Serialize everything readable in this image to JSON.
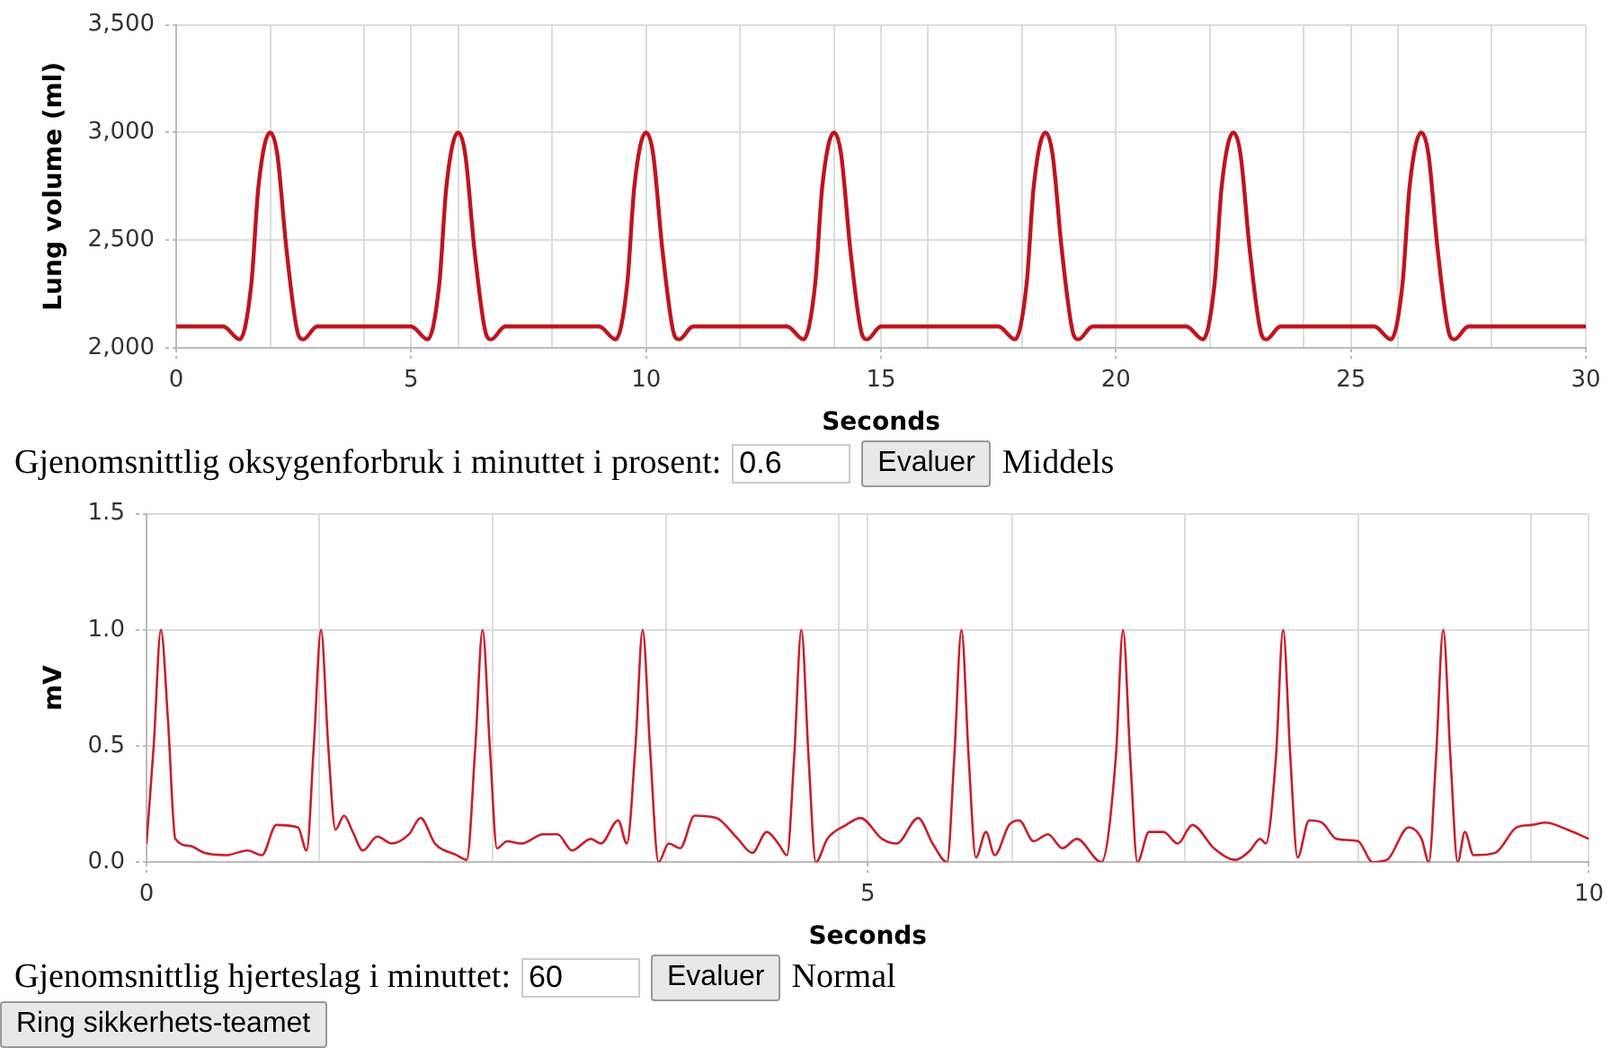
{
  "chart_data": [
    {
      "type": "line",
      "xlabel": "Seconds",
      "ylabel": "Lung volume (ml)",
      "xlim": [
        0,
        30
      ],
      "ylim": [
        2000,
        3500
      ],
      "grid": true,
      "marker": "none",
      "line_style": "solid",
      "color": "#c0141e",
      "xticks": [
        0,
        {
          "value": 2,
          "label": null
        },
        {
          "value": 4,
          "label": null
        },
        5,
        {
          "value": 6,
          "label": null
        },
        {
          "value": 8,
          "label": null
        },
        10,
        {
          "value": 12,
          "label": null
        },
        {
          "value": 14,
          "label": null
        },
        15,
        {
          "value": 16,
          "label": null
        },
        {
          "value": 18,
          "label": null
        },
        20,
        {
          "value": 22,
          "label": null
        },
        {
          "value": 24,
          "label": null
        },
        25,
        {
          "value": 26,
          "label": null
        },
        {
          "value": 28,
          "label": null
        },
        30
      ],
      "yticks": [
        {
          "value": 2000,
          "label": "2,000"
        },
        {
          "value": 2500,
          "label": "2,500"
        },
        {
          "value": 3000,
          "label": "3,000"
        },
        {
          "value": 3500,
          "label": "3,500"
        }
      ],
      "x": [
        0,
        1.0,
        1.35,
        1.6,
        1.75,
        2.0,
        2.15,
        2.35,
        2.6,
        2.7,
        3.0,
        5.0,
        5.35,
        5.6,
        5.75,
        6.0,
        6.15,
        6.35,
        6.6,
        6.7,
        7.0,
        9.0,
        9.35,
        9.6,
        9.75,
        10.0,
        10.15,
        10.35,
        10.6,
        10.7,
        11.0,
        13.0,
        13.35,
        13.6,
        13.75,
        14.0,
        14.15,
        14.35,
        14.6,
        14.7,
        15.0,
        17.5,
        17.85,
        18.1,
        18.25,
        18.5,
        18.65,
        18.85,
        19.1,
        19.2,
        19.5,
        21.5,
        21.85,
        22.1,
        22.25,
        22.5,
        22.65,
        22.85,
        23.1,
        23.2,
        23.5,
        25.5,
        25.85,
        26.1,
        26.25,
        26.5,
        26.65,
        26.85,
        27.1,
        27.2,
        27.5,
        30
      ],
      "values": [
        2100,
        2100,
        2040,
        2300,
        2750,
        3000,
        2900,
        2450,
        2060,
        2040,
        2100,
        2100,
        2040,
        2300,
        2750,
        3000,
        2900,
        2450,
        2060,
        2040,
        2100,
        2100,
        2040,
        2300,
        2750,
        3000,
        2900,
        2450,
        2060,
        2040,
        2100,
        2100,
        2040,
        2300,
        2750,
        3000,
        2900,
        2450,
        2060,
        2040,
        2100,
        2100,
        2040,
        2300,
        2750,
        3000,
        2900,
        2450,
        2060,
        2040,
        2100,
        2100,
        2040,
        2300,
        2750,
        3000,
        2900,
        2450,
        2060,
        2040,
        2100,
        2100,
        2040,
        2300,
        2750,
        3000,
        2900,
        2450,
        2060,
        2040,
        2100,
        2100
      ],
      "annotations": [
        "Gjenomsnittlig oksygenforbruk i minuttet i prosent:",
        "0.6",
        "Evaluer",
        "Middels"
      ]
    },
    {
      "type": "line",
      "xlabel": "Seconds",
      "ylabel": "mV",
      "xlim": [
        0,
        10
      ],
      "ylim": [
        0,
        1.5
      ],
      "grid": true,
      "marker": "none",
      "line_style": "solid",
      "color": "#c8202c",
      "xticks": [
        0,
        {
          "value": 1.2,
          "label": null
        },
        {
          "value": 2.4,
          "label": null
        },
        {
          "value": 3.6,
          "label": null
        },
        {
          "value": 4.8,
          "label": null
        },
        5,
        {
          "value": 6.0,
          "label": null
        },
        {
          "value": 7.2,
          "label": null
        },
        {
          "value": 8.4,
          "label": null
        },
        {
          "value": 9.6,
          "label": null
        },
        10
      ],
      "yticks": [
        {
          "value": 0,
          "label": "0.0"
        },
        0.5,
        {
          "value": 1,
          "label": "1.0"
        },
        1.5
      ],
      "x": [
        0,
        0.05,
        0.1,
        0.15,
        0.2,
        0.3,
        0.4,
        0.55,
        0.7,
        0.8,
        0.9,
        1.05,
        1.11,
        1.16,
        1.21,
        1.26,
        1.31,
        1.37,
        1.43,
        1.5,
        1.6,
        1.7,
        1.82,
        1.9,
        2.0,
        2.15,
        2.22,
        2.28,
        2.33,
        2.38,
        2.43,
        2.5,
        2.6,
        2.75,
        2.85,
        2.95,
        3.08,
        3.15,
        3.27,
        3.33,
        3.39,
        3.44,
        3.49,
        3.55,
        3.62,
        3.7,
        3.8,
        3.95,
        4.1,
        4.2,
        4.3,
        4.38,
        4.44,
        4.49,
        4.54,
        4.59,
        4.64,
        4.72,
        4.85,
        4.95,
        5.1,
        5.2,
        5.35,
        5.45,
        5.55,
        5.6,
        5.65,
        5.7,
        5.75,
        5.82,
        5.88,
        5.98,
        6.05,
        6.15,
        6.25,
        6.35,
        6.45,
        6.62,
        6.72,
        6.77,
        6.82,
        6.87,
        6.95,
        7.05,
        7.15,
        7.25,
        7.4,
        7.55,
        7.65,
        7.72,
        7.76,
        7.83,
        7.88,
        7.93,
        7.98,
        8.06,
        8.15,
        8.25,
        8.4,
        8.5,
        8.6,
        8.75,
        8.84,
        8.89,
        8.94,
        8.99,
        9.04,
        9.09,
        9.14,
        9.2,
        9.35,
        9.5,
        9.6,
        9.7,
        9.85,
        10
      ],
      "values": [
        0.08,
        0.5,
        1.0,
        0.6,
        0.1,
        0.07,
        0.04,
        0.03,
        0.05,
        0.03,
        0.16,
        0.15,
        0.05,
        0.5,
        1.0,
        0.5,
        0.14,
        0.2,
        0.13,
        0.05,
        0.11,
        0.08,
        0.12,
        0.19,
        0.08,
        0.03,
        0.01,
        0.5,
        1.0,
        0.5,
        0.06,
        0.09,
        0.08,
        0.12,
        0.12,
        0.05,
        0.1,
        0.08,
        0.18,
        0.08,
        0.5,
        1.0,
        0.5,
        0.0,
        0.08,
        0.06,
        0.2,
        0.19,
        0.1,
        0.04,
        0.13,
        0.08,
        0.03,
        0.45,
        1.0,
        0.45,
        0.0,
        0.1,
        0.16,
        0.19,
        0.1,
        0.08,
        0.19,
        0.08,
        0.0,
        0.45,
        1.0,
        0.45,
        0.02,
        0.13,
        0.03,
        0.16,
        0.18,
        0.09,
        0.12,
        0.06,
        0.1,
        0.0,
        0.45,
        1.0,
        0.45,
        0.0,
        0.13,
        0.13,
        0.08,
        0.16,
        0.06,
        0.01,
        0.05,
        0.1,
        0.08,
        0.45,
        1.0,
        0.45,
        0.02,
        0.18,
        0.17,
        0.1,
        0.09,
        0.0,
        0.01,
        0.15,
        0.1,
        0.0,
        0.45,
        1.0,
        0.45,
        0.0,
        0.13,
        0.03,
        0.04,
        0.15,
        0.16,
        0.17,
        0.14,
        0.1
      ],
      "annotations": [
        "Gjenomsnittlig hjerteslag i minuttet:",
        "60",
        "Evaluer",
        "Normal",
        "Ring sikkerhets-teamet"
      ]
    }
  ]
}
